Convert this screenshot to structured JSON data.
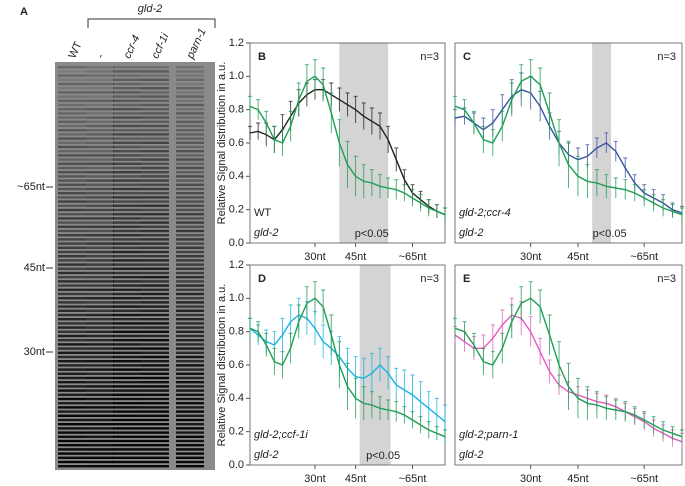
{
  "gel": {
    "panel": "A",
    "group_label": "gld-2",
    "lanes": [
      "WT",
      "-",
      "ccr-4",
      "ccf-1i",
      "parn-1"
    ],
    "markers": [
      "~65nt",
      "45nt",
      "30nt"
    ]
  },
  "chart_data": [
    {
      "type": "line",
      "panel": "B",
      "ylabel": "Relative Signal distribution in a.u.",
      "annotation": "n=3",
      "shade": [
        11,
        17
      ],
      "shade_label": "p<0.05",
      "x": [
        0,
        1,
        2,
        3,
        4,
        5,
        6,
        7,
        8,
        9,
        10,
        11,
        12,
        13,
        14,
        15,
        16,
        17,
        18,
        19,
        20,
        21,
        22,
        23,
        24
      ],
      "xlim": [
        0,
        24
      ],
      "xticks": [
        {
          "value": 8,
          "label": "30nt"
        },
        {
          "value": 13,
          "label": "45nt"
        },
        {
          "value": 20,
          "label": "~65nt"
        }
      ],
      "ylim": [
        0,
        1.2
      ],
      "yticks": [
        {
          "value": 0,
          "label": "0.0"
        },
        0.2,
        0.4,
        0.6,
        0.8,
        {
          "value": 1,
          "label": "1.0"
        },
        1.2
      ],
      "series": [
        {
          "name": "WT",
          "color": "#222222",
          "values": [
            0.66,
            0.67,
            0.65,
            0.62,
            0.68,
            0.76,
            0.84,
            0.89,
            0.92,
            0.92,
            0.89,
            0.86,
            0.83,
            0.8,
            0.76,
            0.73,
            0.7,
            0.62,
            0.5,
            0.38,
            0.3,
            0.26,
            0.22,
            0.19,
            0.17
          ],
          "errors": [
            0.04,
            0.05,
            0.07,
            0.08,
            0.09,
            0.09,
            0.08,
            0.07,
            0.06,
            0.06,
            0.07,
            0.07,
            0.07,
            0.08,
            0.08,
            0.08,
            0.08,
            0.08,
            0.07,
            0.06,
            0.05,
            0.05,
            0.04,
            0.04,
            0.04
          ]
        },
        {
          "name": "gld-2",
          "color": "#1f9e55",
          "values": [
            0.82,
            0.8,
            0.72,
            0.62,
            0.6,
            0.7,
            0.86,
            0.97,
            1.0,
            0.95,
            0.78,
            0.6,
            0.47,
            0.4,
            0.37,
            0.36,
            0.34,
            0.33,
            0.32,
            0.3,
            0.27,
            0.24,
            0.21,
            0.19,
            0.17
          ],
          "errors": [
            0.06,
            0.06,
            0.07,
            0.08,
            0.08,
            0.09,
            0.1,
            0.1,
            0.1,
            0.1,
            0.12,
            0.14,
            0.14,
            0.12,
            0.1,
            0.08,
            0.07,
            0.06,
            0.06,
            0.05,
            0.05,
            0.05,
            0.05,
            0.04,
            0.04
          ]
        }
      ]
    },
    {
      "type": "line",
      "panel": "C",
      "annotation": "n=3",
      "shade": [
        14.5,
        16.5
      ],
      "shade_label": "p<0.05",
      "x": [
        0,
        1,
        2,
        3,
        4,
        5,
        6,
        7,
        8,
        9,
        10,
        11,
        12,
        13,
        14,
        15,
        16,
        17,
        18,
        19,
        20,
        21,
        22,
        23,
        24
      ],
      "xlim": [
        0,
        24
      ],
      "xticks": [
        {
          "value": 8,
          "label": "30nt"
        },
        {
          "value": 13,
          "label": "45nt"
        },
        {
          "value": 20,
          "label": "~65nt"
        }
      ],
      "ylim": [
        0,
        1.2
      ],
      "series": [
        {
          "name": "gld-2;ccr-4",
          "color": "#3a55a0",
          "values": [
            0.75,
            0.76,
            0.72,
            0.68,
            0.72,
            0.8,
            0.88,
            0.92,
            0.9,
            0.82,
            0.7,
            0.6,
            0.53,
            0.5,
            0.52,
            0.57,
            0.6,
            0.55,
            0.45,
            0.36,
            0.3,
            0.27,
            0.24,
            0.2,
            0.18
          ],
          "errors": [
            0.05,
            0.05,
            0.06,
            0.07,
            0.08,
            0.09,
            0.1,
            0.1,
            0.1,
            0.09,
            0.08,
            0.07,
            0.07,
            0.07,
            0.07,
            0.06,
            0.06,
            0.06,
            0.06,
            0.05,
            0.05,
            0.05,
            0.05,
            0.04,
            0.04
          ]
        },
        {
          "name": "gld-2",
          "color": "#1f9e55",
          "values": [
            0.82,
            0.8,
            0.72,
            0.62,
            0.6,
            0.7,
            0.86,
            0.97,
            1.0,
            0.95,
            0.78,
            0.6,
            0.47,
            0.4,
            0.37,
            0.36,
            0.34,
            0.33,
            0.32,
            0.3,
            0.27,
            0.24,
            0.21,
            0.19,
            0.17
          ],
          "errors": [
            0.06,
            0.06,
            0.07,
            0.08,
            0.08,
            0.09,
            0.1,
            0.1,
            0.1,
            0.1,
            0.12,
            0.14,
            0.14,
            0.12,
            0.1,
            0.08,
            0.07,
            0.06,
            0.06,
            0.05,
            0.05,
            0.05,
            0.05,
            0.04,
            0.04
          ]
        }
      ]
    },
    {
      "type": "line",
      "panel": "D",
      "ylabel": "Relative Signal distribution in a.u.",
      "annotation": "n=3",
      "shade": [
        13.5,
        17.3
      ],
      "shade_label": "p<0.05",
      "x": [
        0,
        1,
        2,
        3,
        4,
        5,
        6,
        7,
        8,
        9,
        10,
        11,
        12,
        13,
        14,
        15,
        16,
        17,
        18,
        19,
        20,
        21,
        22,
        23,
        24
      ],
      "xlim": [
        0,
        24
      ],
      "xticks": [
        {
          "value": 8,
          "label": "30nt"
        },
        {
          "value": 13,
          "label": "45nt"
        },
        {
          "value": 20,
          "label": "~65nt"
        }
      ],
      "ylim": [
        0,
        1.2
      ],
      "yticks": [
        {
          "value": 0,
          "label": "0.0"
        },
        0.2,
        0.4,
        0.6,
        0.8,
        {
          "value": 1,
          "label": "1.0"
        },
        1.2
      ],
      "series": [
        {
          "name": "gld-2;ccf-1i",
          "color": "#1ab3de",
          "values": [
            0.82,
            0.78,
            0.74,
            0.72,
            0.78,
            0.86,
            0.9,
            0.88,
            0.82,
            0.74,
            0.7,
            0.65,
            0.58,
            0.53,
            0.52,
            0.55,
            0.6,
            0.55,
            0.48,
            0.45,
            0.42,
            0.38,
            0.34,
            0.3,
            0.26
          ],
          "errors": [
            0.06,
            0.06,
            0.07,
            0.08,
            0.1,
            0.1,
            0.1,
            0.1,
            0.1,
            0.1,
            0.1,
            0.12,
            0.12,
            0.12,
            0.12,
            0.12,
            0.1,
            0.1,
            0.1,
            0.12,
            0.12,
            0.12,
            0.1,
            0.1,
            0.1
          ]
        },
        {
          "name": "gld-2",
          "color": "#1f9e55",
          "values": [
            0.82,
            0.8,
            0.72,
            0.62,
            0.6,
            0.7,
            0.86,
            0.97,
            1.0,
            0.95,
            0.78,
            0.6,
            0.47,
            0.4,
            0.37,
            0.36,
            0.34,
            0.33,
            0.32,
            0.3,
            0.27,
            0.24,
            0.21,
            0.19,
            0.17
          ],
          "errors": [
            0.06,
            0.06,
            0.07,
            0.08,
            0.08,
            0.09,
            0.1,
            0.1,
            0.1,
            0.1,
            0.12,
            0.14,
            0.14,
            0.12,
            0.1,
            0.08,
            0.07,
            0.06,
            0.06,
            0.05,
            0.05,
            0.05,
            0.05,
            0.04,
            0.04
          ]
        }
      ]
    },
    {
      "type": "line",
      "panel": "E",
      "annotation": "n=3",
      "x": [
        0,
        1,
        2,
        3,
        4,
        5,
        6,
        7,
        8,
        9,
        10,
        11,
        12,
        13,
        14,
        15,
        16,
        17,
        18,
        19,
        20,
        21,
        22,
        23,
        24
      ],
      "xlim": [
        0,
        24
      ],
      "xticks": [
        {
          "value": 8,
          "label": "30nt"
        },
        {
          "value": 13,
          "label": "45nt"
        },
        {
          "value": 20,
          "label": "~65nt"
        }
      ],
      "ylim": [
        0,
        1.2
      ],
      "series": [
        {
          "name": "gld-2;parn-1",
          "color": "#e35cbd",
          "values": [
            0.78,
            0.74,
            0.7,
            0.7,
            0.76,
            0.84,
            0.9,
            0.88,
            0.8,
            0.68,
            0.56,
            0.48,
            0.44,
            0.42,
            0.4,
            0.38,
            0.37,
            0.35,
            0.32,
            0.29,
            0.26,
            0.22,
            0.19,
            0.16,
            0.14
          ],
          "errors": [
            0.05,
            0.06,
            0.07,
            0.08,
            0.08,
            0.09,
            0.1,
            0.1,
            0.09,
            0.08,
            0.07,
            0.06,
            0.06,
            0.05,
            0.05,
            0.05,
            0.05,
            0.05,
            0.05,
            0.05,
            0.05,
            0.05,
            0.05,
            0.05,
            0.05
          ]
        },
        {
          "name": "gld-2",
          "color": "#1f9e55",
          "values": [
            0.82,
            0.8,
            0.72,
            0.62,
            0.6,
            0.7,
            0.86,
            0.97,
            1.0,
            0.95,
            0.78,
            0.6,
            0.47,
            0.4,
            0.37,
            0.36,
            0.34,
            0.33,
            0.32,
            0.3,
            0.27,
            0.24,
            0.21,
            0.19,
            0.17
          ],
          "errors": [
            0.06,
            0.06,
            0.07,
            0.08,
            0.08,
            0.09,
            0.1,
            0.1,
            0.1,
            0.1,
            0.12,
            0.14,
            0.14,
            0.12,
            0.1,
            0.08,
            0.07,
            0.06,
            0.06,
            0.05,
            0.05,
            0.05,
            0.05,
            0.04,
            0.04
          ]
        }
      ]
    }
  ]
}
